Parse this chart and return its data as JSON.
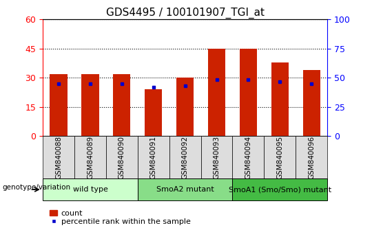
{
  "title": "GDS4495 / 100101907_TGI_at",
  "samples": [
    "GSM840088",
    "GSM840089",
    "GSM840090",
    "GSM840091",
    "GSM840092",
    "GSM840093",
    "GSM840094",
    "GSM840095",
    "GSM840096"
  ],
  "counts": [
    32,
    32,
    32,
    24,
    30,
    45,
    45,
    38,
    34
  ],
  "percentile_ranks": [
    27,
    27,
    27,
    25,
    26,
    29,
    29,
    28,
    27
  ],
  "groups": [
    {
      "label": "wild type",
      "indices": [
        0,
        1,
        2
      ],
      "color": "#ccffcc"
    },
    {
      "label": "SmoA2 mutant",
      "indices": [
        3,
        4,
        5
      ],
      "color": "#88dd88"
    },
    {
      "label": "SmoA1 (Smo/Smo) mutant",
      "indices": [
        6,
        7,
        8
      ],
      "color": "#44bb44"
    }
  ],
  "bar_color": "#cc2200",
  "dot_color": "#0000cc",
  "ylim_left": [
    0,
    60
  ],
  "ylim_right": [
    0,
    100
  ],
  "yticks_left": [
    0,
    15,
    30,
    45,
    60
  ],
  "yticks_right": [
    0,
    25,
    50,
    75,
    100
  ],
  "legend_count_label": "count",
  "legend_pct_label": "percentile rank within the sample",
  "xlabel_genotype": "genotype/variation",
  "bar_width": 0.55,
  "sample_label_fontsize": 7.5,
  "title_fontsize": 11,
  "group_label_fontsize": 8
}
